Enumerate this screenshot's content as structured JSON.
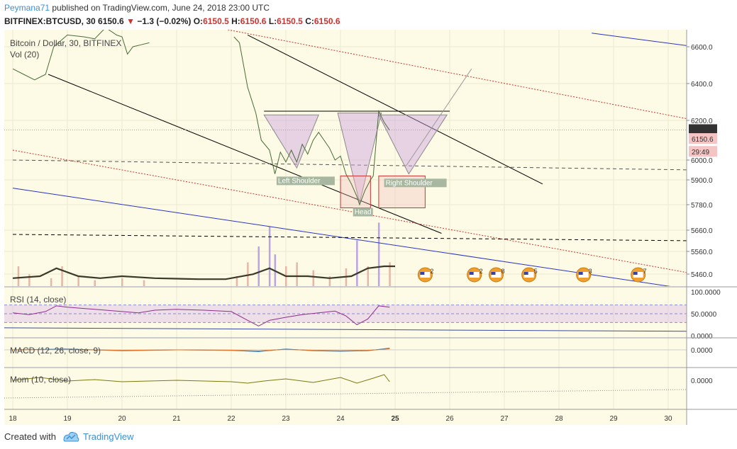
{
  "header": {
    "author": "Peymana71",
    "published_text": " published on TradingView.com, June 24, 2018 23:00 UTC",
    "symbol": "BITFINEX:BTCUSD, 30",
    "last": "6150.6",
    "change": "−1.3 (−0.02%)",
    "o_label": "O:",
    "o": "6150.5",
    "h_label": "H:",
    "h": "6150.6",
    "l_label": "L:",
    "l": "6150.5",
    "c_label": "C:",
    "c": "6150.6"
  },
  "chart_data": {
    "type": "line",
    "title": "Bitcoin / Dollar, 30, BITFINEX",
    "volume_label": "Vol (20)",
    "price_axis": {
      "ylim": [
        5400,
        6650
      ],
      "ticks": [
        6600,
        6400,
        6200,
        6000,
        5900,
        5780,
        5660,
        5560,
        5460
      ]
    },
    "price_tags": [
      {
        "label": "6151.9",
        "value": 6151.9,
        "color": "#333333",
        "text_color": "#ffffff"
      },
      {
        "label": "6150.6",
        "value": 6107,
        "color": "#f5c4c4",
        "text_color": "#333333"
      },
      {
        "label": "29:49",
        "value": 6042,
        "color": "#f5c4c4",
        "text_color": "#333333"
      }
    ],
    "time_axis": {
      "labels": [
        "18",
        "19",
        "20",
        "21",
        "22",
        "23",
        "24",
        "25",
        "26",
        "27",
        "28",
        "29",
        "30"
      ],
      "bold": [
        "25"
      ]
    },
    "price_series": [
      [
        18.0,
        6480
      ],
      [
        18.2,
        6450
      ],
      [
        18.4,
        6420
      ],
      [
        18.6,
        6450
      ],
      [
        18.75,
        6600
      ],
      [
        19.0,
        6660
      ],
      [
        19.3,
        6650
      ],
      [
        19.5,
        6640
      ],
      [
        19.7,
        6700
      ],
      [
        19.9,
        6660
      ],
      [
        20.0,
        6650
      ],
      [
        20.1,
        6560
      ],
      [
        20.2,
        6600
      ],
      [
        20.35,
        6610
      ],
      [
        20.5,
        6620
      ],
      [
        22.05,
        6650
      ],
      [
        22.15,
        6620
      ],
      [
        22.3,
        6380
      ],
      [
        22.45,
        6240
      ],
      [
        22.55,
        6100
      ],
      [
        22.7,
        6050
      ],
      [
        22.8,
        5930
      ],
      [
        22.9,
        6040
      ],
      [
        23.0,
        5990
      ],
      [
        23.1,
        6050
      ],
      [
        23.2,
        5990
      ],
      [
        23.3,
        6080
      ],
      [
        23.4,
        6030
      ],
      [
        23.5,
        6100
      ],
      [
        23.6,
        6140
      ],
      [
        23.7,
        6100
      ],
      [
        23.8,
        6060
      ],
      [
        23.9,
        6000
      ],
      [
        24.0,
        6020
      ],
      [
        24.1,
        5930
      ],
      [
        24.2,
        5880
      ],
      [
        24.3,
        5820
      ],
      [
        24.35,
        5780
      ],
      [
        24.45,
        5850
      ],
      [
        24.55,
        5900
      ],
      [
        24.6,
        5920
      ],
      [
        24.7,
        6250
      ],
      [
        24.8,
        6190
      ],
      [
        24.9,
        6150
      ]
    ],
    "volume_series": [
      [
        18.1,
        1
      ],
      [
        18.3,
        0.6
      ],
      [
        18.7,
        0.4
      ],
      [
        18.9,
        1
      ],
      [
        19.2,
        0.5
      ],
      [
        19.5,
        0.3
      ],
      [
        20.0,
        0.4
      ],
      [
        20.4,
        0.3
      ],
      [
        22.1,
        0.5
      ],
      [
        22.3,
        1.2
      ],
      [
        22.5,
        2.0
      ],
      [
        22.7,
        3.0
      ],
      [
        22.8,
        1.6
      ],
      [
        23.0,
        1.0
      ],
      [
        23.2,
        1.2
      ],
      [
        23.5,
        0.8
      ],
      [
        23.8,
        0.5
      ],
      [
        24.1,
        0.9
      ],
      [
        24.3,
        2.3
      ],
      [
        24.5,
        1.0
      ],
      [
        24.7,
        3.2
      ],
      [
        24.9,
        1.2
      ]
    ],
    "volume_ma": [
      [
        18.0,
        0.4
      ],
      [
        18.5,
        0.5
      ],
      [
        18.8,
        0.9
      ],
      [
        19.2,
        0.5
      ],
      [
        19.6,
        0.4
      ],
      [
        20.0,
        0.5
      ],
      [
        20.6,
        0.4
      ],
      [
        21.4,
        0.35
      ],
      [
        21.9,
        0.35
      ],
      [
        22.4,
        0.6
      ],
      [
        22.7,
        0.9
      ],
      [
        23.0,
        0.5
      ],
      [
        23.4,
        0.5
      ],
      [
        23.8,
        0.4
      ],
      [
        24.2,
        0.5
      ],
      [
        24.5,
        0.9
      ],
      [
        24.8,
        1.0
      ],
      [
        25.0,
        1.0
      ]
    ],
    "pattern": {
      "labels": {
        "left": "Left Shoulder",
        "head": "Head",
        "right": "Right Shoulder"
      },
      "triangles": [
        {
          "p": [
            [
              22.6,
              6230
            ],
            [
              23.6,
              6230
            ],
            [
              23.2,
              5960
            ]
          ]
        },
        {
          "p": [
            [
              23.95,
              6240
            ],
            [
              24.75,
              6240
            ],
            [
              24.35,
              5790
            ]
          ]
        },
        {
          "p": [
            [
              24.7,
              6230
            ],
            [
              25.95,
              6230
            ],
            [
              25.25,
              5930
            ]
          ]
        }
      ],
      "neckline": [
        [
          22.6,
          6250
        ],
        [
          26.0,
          6250
        ]
      ],
      "projection": [
        [
          25.2,
          5970
        ],
        [
          26.4,
          6480
        ]
      ],
      "head_box": {
        "x": [
          24.0,
          24.55
        ],
        "y": [
          5765,
          5920
        ]
      },
      "right_box": {
        "x": [
          24.7,
          25.55
        ],
        "y": [
          5765,
          5920
        ]
      }
    },
    "trendlines": [
      {
        "color": "#000000",
        "dash": false,
        "p": [
          [
            18.65,
            6450
          ],
          [
            25.85,
            5645
          ]
        ]
      },
      {
        "color": "#000000",
        "dash": false,
        "p": [
          [
            22.3,
            6660
          ],
          [
            27.7,
            5880
          ]
        ]
      },
      {
        "color": "#2b33c9",
        "dash": false,
        "p": [
          [
            18.0,
            5860
          ],
          [
            30.5,
            5380
          ]
        ]
      },
      {
        "color": "#2b33c9",
        "dash": false,
        "p": [
          [
            28.6,
            6670
          ],
          [
            30.5,
            6600
          ]
        ]
      },
      {
        "color": "#d0312d",
        "dash": true,
        "p": [
          [
            18.0,
            6050
          ],
          [
            30.5,
            5460
          ]
        ]
      },
      {
        "color": "#d0312d",
        "dash": true,
        "p": [
          [
            20.0,
            6800
          ],
          [
            30.5,
            6200
          ]
        ]
      },
      {
        "color": "#000000",
        "dash": true,
        "p": [
          [
            18.0,
            5640
          ],
          [
            30.5,
            5610
          ]
        ]
      },
      {
        "color": "#555555",
        "dash": true,
        "p": [
          [
            18.0,
            6000
          ],
          [
            30.5,
            5950
          ]
        ]
      }
    ],
    "event_markers": [
      {
        "x": 25.55,
        "label": "2"
      },
      {
        "x": 26.45,
        "label": "2"
      },
      {
        "x": 26.85,
        "label": "8"
      },
      {
        "x": 27.45,
        "label": "5"
      },
      {
        "x": 28.45,
        "label": "3"
      },
      {
        "x": 29.45,
        "label": "7"
      }
    ],
    "rsi": {
      "label": "RSI (14, close)",
      "ticks": [
        "100.0000",
        "50.0000",
        "0.0000"
      ],
      "band": [
        30,
        70
      ],
      "level_values": [
        70,
        50,
        30
      ],
      "values": [
        [
          18.0,
          52
        ],
        [
          18.3,
          48
        ],
        [
          18.6,
          55
        ],
        [
          18.8,
          68
        ],
        [
          19.0,
          65
        ],
        [
          19.5,
          60
        ],
        [
          20.0,
          55
        ],
        [
          20.3,
          52
        ],
        [
          20.6,
          58
        ],
        [
          21.0,
          60
        ],
        [
          21.5,
          58
        ],
        [
          22.0,
          55
        ],
        [
          22.3,
          35
        ],
        [
          22.5,
          22
        ],
        [
          22.7,
          35
        ],
        [
          23.0,
          42
        ],
        [
          23.3,
          48
        ],
        [
          23.6,
          52
        ],
        [
          23.9,
          56
        ],
        [
          24.1,
          45
        ],
        [
          24.3,
          25
        ],
        [
          24.5,
          38
        ],
        [
          24.7,
          68
        ],
        [
          24.9,
          65
        ]
      ]
    },
    "macd": {
      "label": "MACD (12, 26, close, 9)",
      "ticks": [
        "0.0000"
      ],
      "values": [
        [
          18.0,
          0
        ],
        [
          19.0,
          5
        ],
        [
          20.0,
          -5
        ],
        [
          21.0,
          0
        ],
        [
          22.0,
          -3
        ],
        [
          22.5,
          -10
        ],
        [
          23.0,
          5
        ],
        [
          23.5,
          -5
        ],
        [
          24.0,
          -8
        ],
        [
          24.5,
          -5
        ],
        [
          24.9,
          10
        ]
      ]
    },
    "mom": {
      "label": "Mom (10, close)",
      "ticks": [
        "0.0000"
      ],
      "values": [
        [
          18.0,
          0
        ],
        [
          18.5,
          20
        ],
        [
          19.0,
          -5
        ],
        [
          19.5,
          5
        ],
        [
          20.0,
          -10
        ],
        [
          21.0,
          0
        ],
        [
          22.0,
          -10
        ],
        [
          22.3,
          -20
        ],
        [
          22.6,
          -5
        ],
        [
          23.0,
          10
        ],
        [
          23.5,
          -15
        ],
        [
          24.0,
          20
        ],
        [
          24.3,
          -20
        ],
        [
          24.6,
          15
        ],
        [
          24.8,
          40
        ],
        [
          24.9,
          -10
        ]
      ]
    }
  },
  "footer": {
    "created_with": "Created with",
    "brand": "TradingView"
  }
}
